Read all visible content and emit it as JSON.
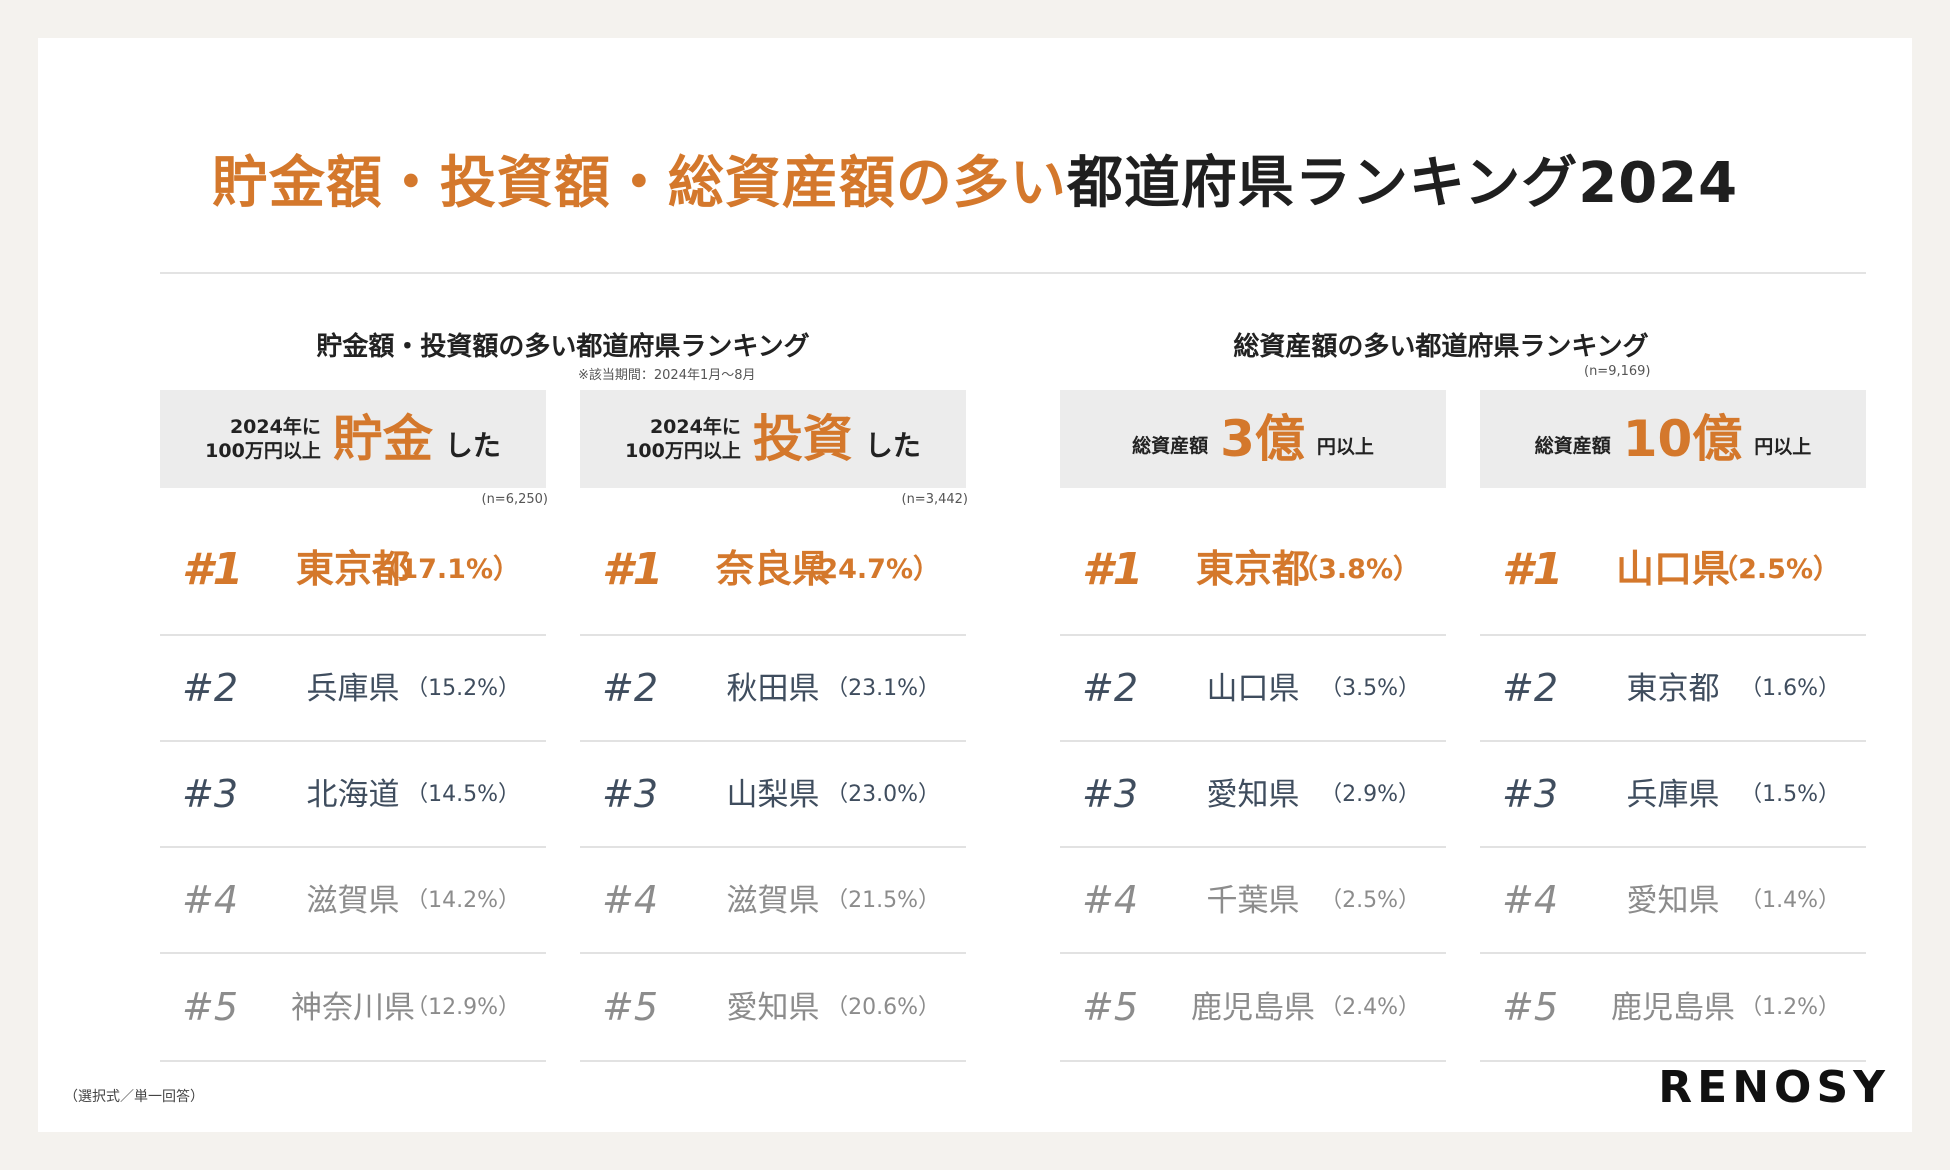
{
  "title": {
    "orange": "貯金額・投資額・総資産額の多い",
    "dark": "都道府県ランキング2024"
  },
  "colors": {
    "accent": "#d4782c",
    "rank2_3": "#3f4d5e",
    "rank4_5": "#8c8c8c",
    "header_bg": "#ececec"
  },
  "sections": [
    {
      "title": "貯金額・投資額の多い都道府県ランキング",
      "note": "※該当期間：2024年1月〜8月"
    },
    {
      "title": "総資産額の多い都道府県ランキング",
      "note": "(n=9,169)"
    }
  ],
  "footer": {
    "note": "（選択式／単一回答）",
    "logo": "RENOSY"
  },
  "chart_data": [
    {
      "type": "table",
      "header": {
        "prefix": [
          "2024年に",
          "100万円以上"
        ],
        "highlight": "貯金",
        "suffix": "した"
      },
      "n_label": "(n=6,250)",
      "rows": [
        {
          "rank": "#1",
          "prefecture": "東京都",
          "percent": "（17.1%）",
          "value": 17.1
        },
        {
          "rank": "#2",
          "prefecture": "兵庫県",
          "percent": "（15.2%）",
          "value": 15.2
        },
        {
          "rank": "#3",
          "prefecture": "北海道",
          "percent": "（14.5%）",
          "value": 14.5
        },
        {
          "rank": "#4",
          "prefecture": "滋賀県",
          "percent": "（14.2%）",
          "value": 14.2
        },
        {
          "rank": "#5",
          "prefecture": "神奈川県",
          "percent": "（12.9%）",
          "value": 12.9
        }
      ]
    },
    {
      "type": "table",
      "header": {
        "prefix": [
          "2024年に",
          "100万円以上"
        ],
        "highlight": "投資",
        "suffix": "した"
      },
      "n_label": "(n=3,442)",
      "rows": [
        {
          "rank": "#1",
          "prefecture": "奈良県",
          "percent": "（24.7%）",
          "value": 24.7
        },
        {
          "rank": "#2",
          "prefecture": "秋田県",
          "percent": "（23.1%）",
          "value": 23.1
        },
        {
          "rank": "#3",
          "prefecture": "山梨県",
          "percent": "（23.0%）",
          "value": 23.0
        },
        {
          "rank": "#4",
          "prefecture": "滋賀県",
          "percent": "（21.5%）",
          "value": 21.5
        },
        {
          "rank": "#5",
          "prefecture": "愛知県",
          "percent": "（20.6%）",
          "value": 20.6
        }
      ]
    },
    {
      "type": "table",
      "header": {
        "prefix": [
          "総資産額"
        ],
        "highlight": "3億",
        "suffix": "円以上"
      },
      "n_label": "",
      "rows": [
        {
          "rank": "#1",
          "prefecture": "東京都",
          "percent": "（3.8%）",
          "value": 3.8
        },
        {
          "rank": "#2",
          "prefecture": "山口県",
          "percent": "（3.5%）",
          "value": 3.5
        },
        {
          "rank": "#3",
          "prefecture": "愛知県",
          "percent": "（2.9%）",
          "value": 2.9
        },
        {
          "rank": "#4",
          "prefecture": "千葉県",
          "percent": "（2.5%）",
          "value": 2.5
        },
        {
          "rank": "#5",
          "prefecture": "鹿児島県",
          "percent": "（2.4%）",
          "value": 2.4
        }
      ]
    },
    {
      "type": "table",
      "header": {
        "prefix": [
          "総資産額"
        ],
        "highlight": "10億",
        "suffix": "円以上"
      },
      "n_label": "",
      "rows": [
        {
          "rank": "#1",
          "prefecture": "山口県",
          "percent": "（2.5%）",
          "value": 2.5
        },
        {
          "rank": "#2",
          "prefecture": "東京都",
          "percent": "（1.6%）",
          "value": 1.6
        },
        {
          "rank": "#3",
          "prefecture": "兵庫県",
          "percent": "（1.5%）",
          "value": 1.5
        },
        {
          "rank": "#4",
          "prefecture": "愛知県",
          "percent": "（1.4%）",
          "value": 1.4
        },
        {
          "rank": "#5",
          "prefecture": "鹿児島県",
          "percent": "（1.2%）",
          "value": 1.2
        }
      ]
    }
  ]
}
